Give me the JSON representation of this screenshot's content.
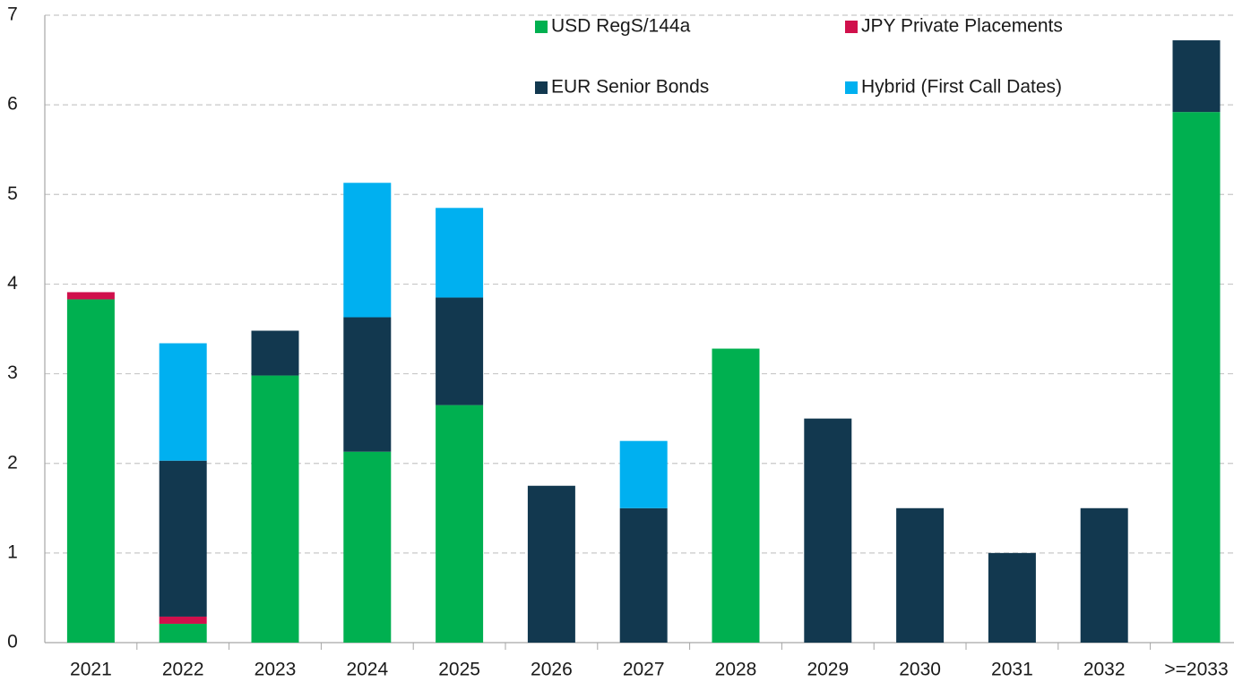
{
  "chart_data": {
    "type": "stacked_bar",
    "categories": [
      "2021",
      "2022",
      "2023",
      "2024",
      "2025",
      "2026",
      "2027",
      "2028",
      "2029",
      "2030",
      "2031",
      "2032",
      ">=2033"
    ],
    "series": [
      {
        "name": "USD RegS/144a",
        "color": "#00b050",
        "values": [
          3.83,
          0.21,
          2.98,
          2.13,
          2.65,
          null,
          null,
          3.28,
          null,
          null,
          null,
          null,
          5.92
        ]
      },
      {
        "name": "JPY Private Placements",
        "color": "#d0104c",
        "values": [
          0.08,
          0.08,
          null,
          null,
          null,
          null,
          null,
          null,
          null,
          null,
          null,
          null,
          null
        ]
      },
      {
        "name": "EUR Senior Bonds",
        "color": "#12384f",
        "values": [
          null,
          1.74,
          0.5,
          1.5,
          1.2,
          1.75,
          1.5,
          null,
          2.5,
          1.5,
          1.0,
          1.5,
          0.8
        ]
      },
      {
        "name": "Hybrid (First Call Dates)",
        "color": "#00b0f0",
        "values": [
          null,
          1.31,
          null,
          1.5,
          1.0,
          null,
          0.75,
          null,
          null,
          null,
          null,
          null,
          null
        ]
      }
    ],
    "ylim": [
      0,
      7
    ],
    "yticks": [
      0,
      1,
      2,
      3,
      4,
      5,
      6,
      7
    ],
    "grid": true
  }
}
